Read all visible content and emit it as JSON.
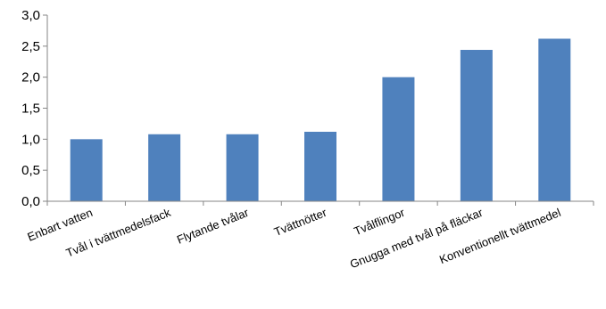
{
  "chart_data": {
    "type": "bar",
    "title": "",
    "xlabel": "",
    "ylabel": "",
    "categories": [
      "Enbart vatten",
      "Tvål i tvättmedelsfack",
      "Flytande tvålar",
      "Tvättnötter",
      "Tvålflingor",
      "Gnugga med tvål på fläckar",
      "Konventionellt tvättmedel"
    ],
    "values": [
      1.0,
      1.08,
      1.08,
      1.12,
      2.0,
      2.44,
      2.62
    ],
    "ylim": [
      0,
      3.0
    ],
    "yticks": [
      "0,0",
      "0,5",
      "1,0",
      "1,5",
      "2,0",
      "2,5",
      "3,0"
    ],
    "ytick_values": [
      0,
      0.5,
      1.0,
      1.5,
      2.0,
      2.5,
      3.0
    ],
    "grid": false,
    "legend": "none",
    "bar_color": "#4F81BD",
    "axis_color": "#868686"
  }
}
